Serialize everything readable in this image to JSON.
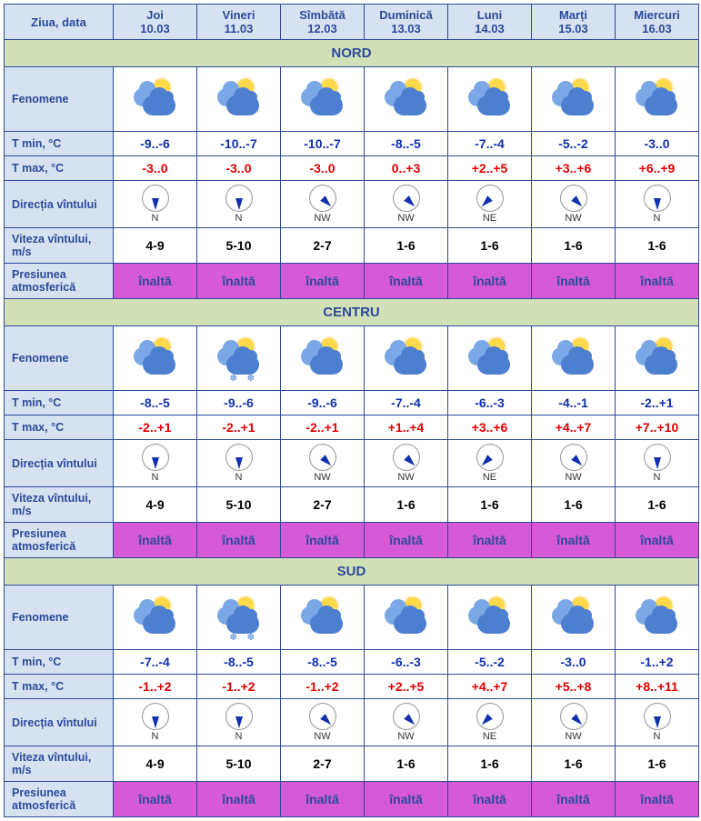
{
  "colors": {
    "border": "#2b4a9b",
    "header_bg": "#d6e2f0",
    "header_text": "#2b4a9b",
    "region_bg": "#d2e0b8",
    "tmin_text": "#1030b0",
    "tmax_text": "#e00000",
    "pressure_bg": "#d65ad6",
    "pressure_text": "#2b4a9b"
  },
  "header": {
    "label": "Ziua, data",
    "days": [
      {
        "day": "Joi",
        "date": "10.03"
      },
      {
        "day": "Vineri",
        "date": "11.03"
      },
      {
        "day": "Sîmbătă",
        "date": "12.03"
      },
      {
        "day": "Duminică",
        "date": "13.03"
      },
      {
        "day": "Luni",
        "date": "14.03"
      },
      {
        "day": "Marți",
        "date": "15.03"
      },
      {
        "day": "Miercuri",
        "date": "16.03"
      }
    ]
  },
  "rowLabels": {
    "phenomena": "Fenomene",
    "tmin": "T min, °C",
    "tmax": "T max, °C",
    "windDir": "Direcția vîntului",
    "windSpeed": "Viteza vîntului, m/s",
    "pressure": "Presiunea atmosferică"
  },
  "windArrowRotation": {
    "N": 180,
    "NW": 135,
    "NE": 225
  },
  "regions": [
    {
      "name": "NORD",
      "phenomena": [
        {
          "sun": true,
          "snow": false
        },
        {
          "sun": true,
          "snow": false
        },
        {
          "sun": true,
          "snow": false
        },
        {
          "sun": true,
          "snow": false
        },
        {
          "sun": true,
          "snow": false
        },
        {
          "sun": true,
          "snow": false
        },
        {
          "sun": true,
          "snow": false
        }
      ],
      "tmin": [
        "-9..-6",
        "-10..-7",
        "-10..-7",
        "-8..-5",
        "-7..-4",
        "-5..-2",
        "-3..0"
      ],
      "tmax": [
        "-3..0",
        "-3..0",
        "-3..0",
        "0..+3",
        "+2..+5",
        "+3..+6",
        "+6..+9"
      ],
      "windDir": [
        "N",
        "N",
        "NW",
        "NW",
        "NE",
        "NW",
        "N"
      ],
      "windSpeed": [
        "4-9",
        "5-10",
        "2-7",
        "1-6",
        "1-6",
        "1-6",
        "1-6"
      ],
      "pressure": [
        "înaltă",
        "înaltă",
        "înaltă",
        "înaltă",
        "înaltă",
        "înaltă",
        "înaltă"
      ]
    },
    {
      "name": "CENTRU",
      "phenomena": [
        {
          "sun": true,
          "snow": false
        },
        {
          "sun": true,
          "snow": true
        },
        {
          "sun": true,
          "snow": false
        },
        {
          "sun": true,
          "snow": false
        },
        {
          "sun": true,
          "snow": false
        },
        {
          "sun": true,
          "snow": false
        },
        {
          "sun": true,
          "snow": false
        }
      ],
      "tmin": [
        "-8..-5",
        "-9..-6",
        "-9..-6",
        "-7..-4",
        "-6..-3",
        "-4..-1",
        "-2..+1"
      ],
      "tmax": [
        "-2..+1",
        "-2..+1",
        "-2..+1",
        "+1..+4",
        "+3..+6",
        "+4..+7",
        "+7..+10"
      ],
      "windDir": [
        "N",
        "N",
        "NW",
        "NW",
        "NE",
        "NW",
        "N"
      ],
      "windSpeed": [
        "4-9",
        "5-10",
        "2-7",
        "1-6",
        "1-6",
        "1-6",
        "1-6"
      ],
      "pressure": [
        "înaltă",
        "înaltă",
        "înaltă",
        "înaltă",
        "înaltă",
        "înaltă",
        "înaltă"
      ]
    },
    {
      "name": "SUD",
      "phenomena": [
        {
          "sun": true,
          "snow": false
        },
        {
          "sun": true,
          "snow": true
        },
        {
          "sun": true,
          "snow": false
        },
        {
          "sun": true,
          "snow": false
        },
        {
          "sun": true,
          "snow": false
        },
        {
          "sun": true,
          "snow": false
        },
        {
          "sun": true,
          "snow": false
        }
      ],
      "tmin": [
        "-7..-4",
        "-8..-5",
        "-8..-5",
        "-6..-3",
        "-5..-2",
        "-3..0",
        "-1..+2"
      ],
      "tmax": [
        "-1..+2",
        "-1..+2",
        "-1..+2",
        "+2..+5",
        "+4..+7",
        "+5..+8",
        "+8..+11"
      ],
      "windDir": [
        "N",
        "N",
        "NW",
        "NW",
        "NE",
        "NW",
        "N"
      ],
      "windSpeed": [
        "4-9",
        "5-10",
        "2-7",
        "1-6",
        "1-6",
        "1-6",
        "1-6"
      ],
      "pressure": [
        "înaltă",
        "înaltă",
        "înaltă",
        "înaltă",
        "înaltă",
        "înaltă",
        "înaltă"
      ]
    }
  ]
}
